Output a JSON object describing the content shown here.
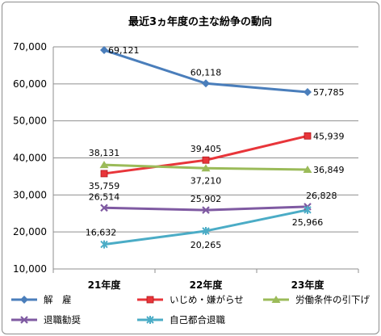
{
  "chart_data": {
    "type": "line",
    "title": "最近3ヵ年度の主な紛争の動向",
    "categories": [
      "21年度",
      "22年度",
      "23年度"
    ],
    "ylim": [
      10000,
      70000
    ],
    "yticks": [
      10000,
      20000,
      30000,
      40000,
      50000,
      60000,
      70000
    ],
    "ytick_labels": [
      "10,000",
      "20,000",
      "30,000",
      "40,000",
      "50,000",
      "60,000",
      "70,000"
    ],
    "grid": true,
    "legend_position": "bottom",
    "series": [
      {
        "name": "解　雇",
        "values": [
          69121,
          60118,
          57785
        ],
        "labels": [
          "69,121",
          "60,118",
          "57,785"
        ],
        "color": "#4a7ebb",
        "marker": "diamond"
      },
      {
        "name": "いじめ・嫌がらせ",
        "values": [
          35759,
          39405,
          45939
        ],
        "labels": [
          "35,759",
          "39,405",
          "45,939"
        ],
        "color": "#e8353a",
        "marker": "square"
      },
      {
        "name": "労働条件の引下げ",
        "values": [
          38131,
          37210,
          36849
        ],
        "labels": [
          "38,131",
          "37,210",
          "36,849"
        ],
        "color": "#9bbb59",
        "marker": "triangle"
      },
      {
        "name": "退職勧奨",
        "values": [
          26514,
          25902,
          26828
        ],
        "labels": [
          "26,514",
          "25,902",
          "26,828"
        ],
        "color": "#7f5aa2",
        "marker": "x"
      },
      {
        "name": "自己都合退職",
        "values": [
          16632,
          20265,
          25966
        ],
        "labels": [
          "16,632",
          "20,265",
          "25,966"
        ],
        "color": "#4bacc6",
        "marker": "star"
      }
    ]
  }
}
